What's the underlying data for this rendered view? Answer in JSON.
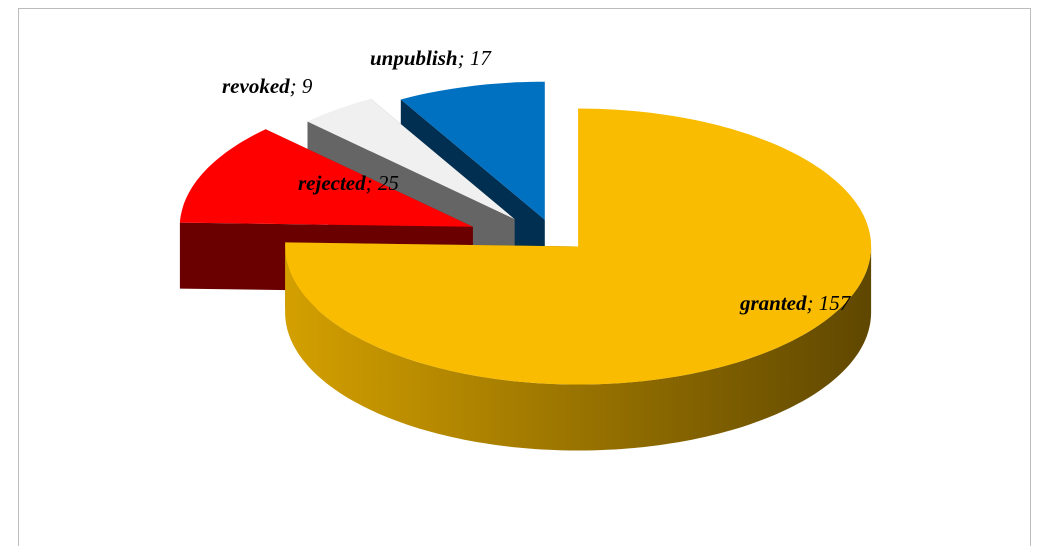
{
  "chart_data": {
    "type": "pie3d",
    "categories": [
      "granted",
      "rejected",
      "revoked",
      "unpublish"
    ],
    "values": [
      157,
      25,
      9,
      17
    ],
    "colors": [
      "#f9bc00",
      "#ff0000",
      "#f0f0f0",
      "#0070c0"
    ],
    "label_separator": "; "
  }
}
